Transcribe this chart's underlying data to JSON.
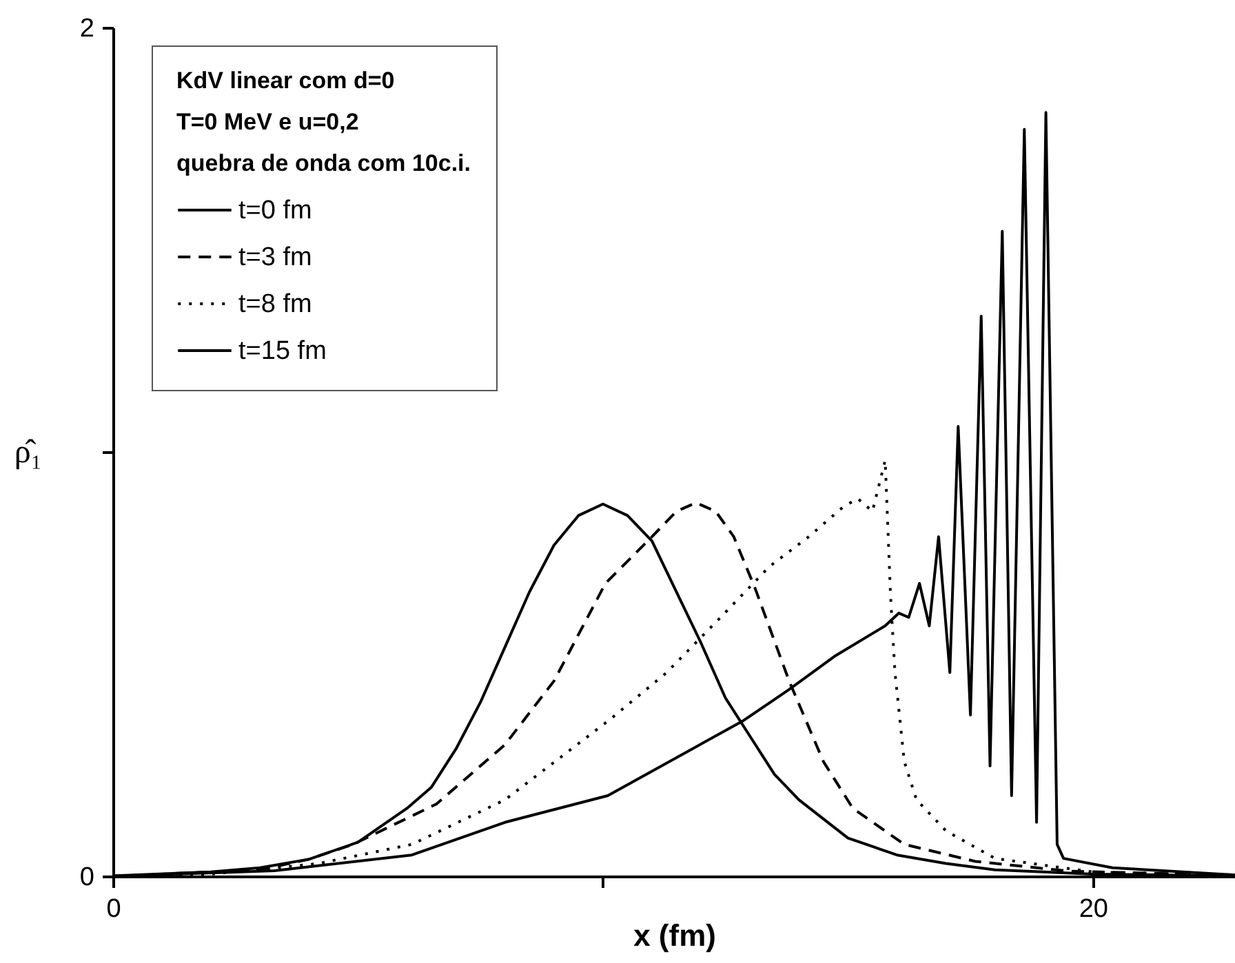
{
  "chart_data": {
    "type": "line",
    "xlabel": "x (fm)",
    "ylabel": "ρ̂₁",
    "legend_title": "KdV linear com d=0\nT=0 MeV e u=0,2\nquebra de onda com 10c.i.",
    "legend": "top left",
    "grid": false,
    "xlim": [
      0,
      22.9
    ],
    "xticks": [
      0,
      {
        "value": 10,
        "label": null
      },
      20
    ],
    "ylim": [
      0,
      2
    ],
    "yticks": [
      0,
      {
        "value": 1,
        "label": null
      },
      2
    ],
    "series": [
      {
        "name": "t=0 fm",
        "color": "#000000",
        "line_style": "solid",
        "x": [
          0,
          2,
          3,
          4,
          5,
          6,
          6.5,
          7,
          7.5,
          8,
          8.5,
          9,
          9.5,
          10,
          10.5,
          11,
          11.5,
          12,
          12.5,
          13,
          13.5,
          14,
          15,
          16,
          17,
          18,
          20,
          22.9
        ],
        "values": [
          0.001,
          0.01,
          0.02,
          0.04,
          0.08,
          0.16,
          0.21,
          0.3,
          0.41,
          0.54,
          0.67,
          0.78,
          0.85,
          0.877,
          0.85,
          0.79,
          0.67,
          0.55,
          0.42,
          0.33,
          0.24,
          0.18,
          0.09,
          0.05,
          0.03,
          0.015,
          0.005,
          0.001
        ]
      },
      {
        "name": "t=3 fm",
        "color": "#000000",
        "line_style": "dashed",
        "x": [
          0,
          3,
          4,
          4.9,
          6.6,
          8,
          9,
          10.05,
          11,
          11.5,
          11.9,
          12.3,
          12.67,
          13.1,
          13.8,
          14.5,
          15.1,
          16.15,
          17.6,
          19.5,
          22.9
        ],
        "values": [
          0,
          0.015,
          0.04,
          0.075,
          0.17,
          0.31,
          0.46,
          0.69,
          0.8,
          0.86,
          0.88,
          0.86,
          0.8,
          0.68,
          0.46,
          0.27,
          0.16,
          0.075,
          0.035,
          0.012,
          0.002
        ]
      },
      {
        "name": "t=8 fm",
        "color": "#000000",
        "line_style": "dotted",
        "x": [
          0,
          2,
          4.2,
          6.1,
          8,
          10.15,
          11.3,
          12.4,
          13.4,
          14.2,
          14.9,
          15.2,
          15.5,
          15.76,
          15.87,
          15.96,
          16.15,
          16.4,
          17,
          18,
          20,
          22.9
        ],
        "values": [
          0,
          0.005,
          0.03,
          0.075,
          0.18,
          0.37,
          0.48,
          0.61,
          0.73,
          0.8,
          0.87,
          0.89,
          0.86,
          0.98,
          0.66,
          0.48,
          0.27,
          0.18,
          0.107,
          0.042,
          0.01,
          0.002
        ]
      },
      {
        "name": "t=15 fm",
        "color": "#000000",
        "line_style": "solid",
        "x": [
          0,
          3.3,
          6.1,
          8,
          10.1,
          12.87,
          13.8,
          14.75,
          15.76,
          16.04,
          16.24,
          16.46,
          16.66,
          16.85,
          17.08,
          17.25,
          17.5,
          17.72,
          17.9,
          18.15,
          18.34,
          18.6,
          18.85,
          19.04,
          19.27,
          19.4,
          20.4,
          22.9
        ],
        "values": [
          0,
          0.013,
          0.05,
          0.127,
          0.19,
          0.367,
          0.44,
          0.52,
          0.59,
          0.62,
          0.61,
          0.69,
          0.59,
          0.8,
          0.48,
          1.06,
          0.38,
          1.32,
          0.26,
          1.52,
          0.19,
          1.76,
          0.127,
          1.8,
          0.075,
          0.042,
          0.02,
          0.003
        ]
      }
    ]
  }
}
